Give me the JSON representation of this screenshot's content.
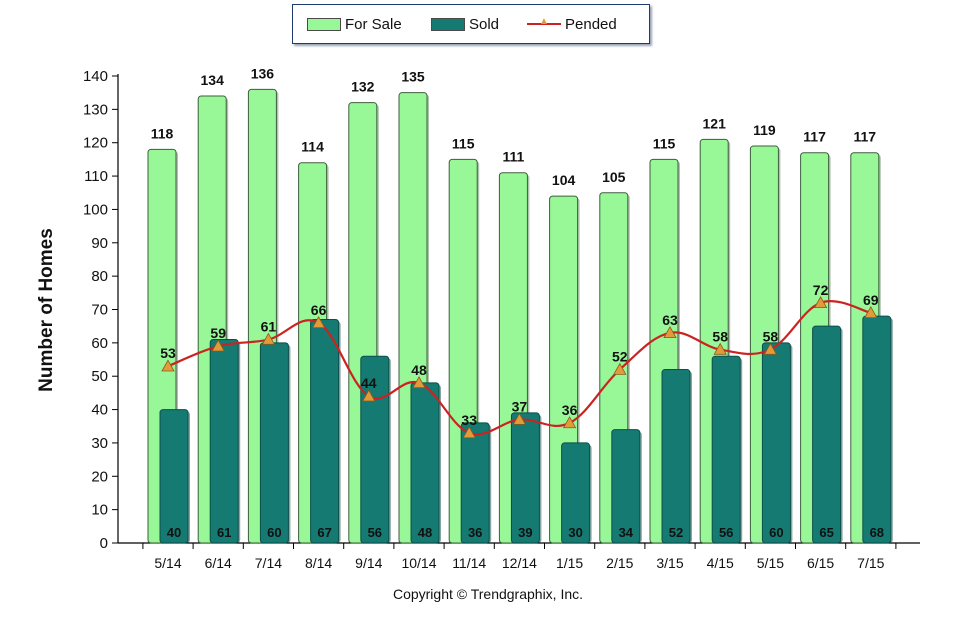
{
  "chart_data": {
    "type": "bar",
    "categories": [
      "5/14",
      "6/14",
      "7/14",
      "8/14",
      "9/14",
      "10/14",
      "11/14",
      "12/14",
      "1/15",
      "2/15",
      "3/15",
      "4/15",
      "5/15",
      "6/15",
      "7/15"
    ],
    "series": [
      {
        "name": "For Sale",
        "type": "bar",
        "color": "#98f898",
        "values": [
          118,
          134,
          136,
          114,
          132,
          135,
          115,
          111,
          104,
          105,
          115,
          121,
          119,
          117,
          117
        ]
      },
      {
        "name": "Sold",
        "type": "bar",
        "color": "#147a72",
        "values": [
          40,
          61,
          60,
          67,
          56,
          48,
          36,
          39,
          30,
          34,
          52,
          56,
          60,
          65,
          68
        ]
      },
      {
        "name": "Pended",
        "type": "line",
        "color": "#cc2222",
        "marker_color": "#e39a3a",
        "values": [
          53,
          59,
          61,
          66,
          44,
          48,
          33,
          37,
          36,
          52,
          63,
          58,
          58,
          72,
          69
        ]
      }
    ],
    "title": "",
    "xlabel": "",
    "ylabel": "Number of Homes",
    "ylim": [
      0,
      140
    ],
    "yticks": [
      0,
      10,
      20,
      30,
      40,
      50,
      60,
      70,
      80,
      90,
      100,
      110,
      120,
      130,
      140
    ],
    "grid": false,
    "legend_position": "top"
  },
  "legend": {
    "for_sale": "For Sale",
    "sold": "Sold",
    "pended": "Pended"
  },
  "copyright": "Copyright © Trendgraphix, Inc."
}
